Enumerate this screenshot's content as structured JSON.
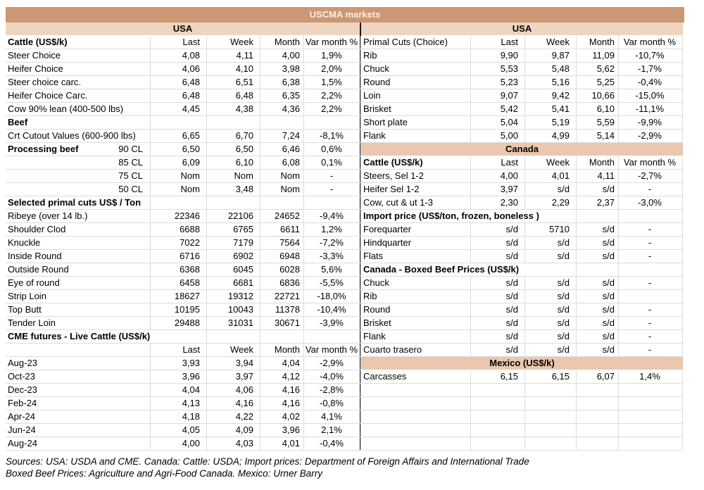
{
  "title": "USCMA markets",
  "colors": {
    "title_bar": "#cb9873",
    "usa_bar": "#efd5c0",
    "country_bar": "#eac7ad",
    "grid": "#dcdcdc",
    "divider": "#1a1a1a"
  },
  "column_headers": [
    "Last",
    "Week",
    "Month",
    "Var month %"
  ],
  "left": {
    "rows": [
      {
        "t": "bar",
        "variant": "usa",
        "label": "USA"
      },
      {
        "t": "colhead",
        "label": "Cattle (US$/k)",
        "labelBold": true,
        "cells": [
          "Last",
          "Week",
          "Month",
          "Var month %"
        ]
      },
      {
        "t": "data",
        "label": "Steer Choice",
        "cells": [
          "4,08",
          "4,11",
          "4,00",
          "1,9%"
        ]
      },
      {
        "t": "data",
        "label": "Heifer Choice",
        "cells": [
          "4,06",
          "4,10",
          "3,98",
          "2,0%"
        ]
      },
      {
        "t": "data",
        "label": "Steer choice carc.",
        "cells": [
          "6,48",
          "6,51",
          "6,38",
          "1,5%"
        ]
      },
      {
        "t": "data",
        "label": "Heifer Choice Carc.",
        "cells": [
          "6,48",
          "6,48",
          "6,35",
          "2,2%"
        ]
      },
      {
        "t": "data",
        "label": "Cow 90% lean (400-500 lbs)",
        "cells": [
          "4,45",
          "4,38",
          "4,36",
          "2,2%"
        ]
      },
      {
        "t": "section",
        "label": "Beef",
        "span": 1
      },
      {
        "t": "data",
        "label": "Crt Cutout Values (600-900 lbs)",
        "cells": [
          "6,65",
          "6,70",
          "7,24",
          "-8,1%"
        ]
      },
      {
        "t": "data",
        "label": "Processing beef",
        "sub": "90 CL",
        "labelBold": true,
        "cells": [
          "6,50",
          "6,50",
          "6,46",
          "0,6%"
        ]
      },
      {
        "t": "data",
        "label": "85 CL",
        "labelAlign": "right",
        "cells": [
          "6,09",
          "6,10",
          "6,08",
          "0,1%"
        ]
      },
      {
        "t": "data",
        "label": "75 CL",
        "labelAlign": "right",
        "cells": [
          "Nom",
          "Nom",
          "Nom",
          "-"
        ]
      },
      {
        "t": "data",
        "label": "50 CL",
        "labelAlign": "right",
        "cells": [
          "Nom",
          "3,48",
          "Nom",
          "-"
        ]
      },
      {
        "t": "section",
        "label": "Selected primal cuts US$ / Ton",
        "span": 1
      },
      {
        "t": "data",
        "label": "Ribeye (over 14 lb.)",
        "cells": [
          "22346",
          "22106",
          "24652",
          "-9,4%"
        ]
      },
      {
        "t": "data",
        "label": "Shoulder Clod",
        "cells": [
          "6688",
          "6765",
          "6611",
          "1,2%"
        ]
      },
      {
        "t": "data",
        "label": "Knuckle",
        "cells": [
          "7022",
          "7179",
          "7564",
          "-7,2%"
        ]
      },
      {
        "t": "data",
        "label": "Inside Round",
        "cells": [
          "6716",
          "6902",
          "6948",
          "-3,3%"
        ]
      },
      {
        "t": "data",
        "label": "Outside Round",
        "cells": [
          "6368",
          "6045",
          "6028",
          "5,6%"
        ]
      },
      {
        "t": "data",
        "label": "Eye of round",
        "cells": [
          "6458",
          "6681",
          "6836",
          "-5,5%"
        ]
      },
      {
        "t": "data",
        "label": "Strip Loin",
        "cells": [
          "18627",
          "19312",
          "22721",
          "-18,0%"
        ]
      },
      {
        "t": "data",
        "label": "Top Butt",
        "cells": [
          "10195",
          "10043",
          "11378",
          "-10,4%"
        ]
      },
      {
        "t": "data",
        "label": "Tender Loin",
        "cells": [
          "29488",
          "31031",
          "30671",
          "-3,9%"
        ]
      },
      {
        "t": "section",
        "label": "CME futures - Live Cattle (US$/k)",
        "span": 2
      },
      {
        "t": "colhead",
        "label": "",
        "cells": [
          "Last",
          "Week",
          "Month",
          "Var month %"
        ]
      },
      {
        "t": "data",
        "label": "Aug-23",
        "cells": [
          "3,93",
          "3,94",
          "4,04",
          "-2,9%"
        ]
      },
      {
        "t": "data",
        "label": "Oct-23",
        "cells": [
          "3,96",
          "3,97",
          "4,12",
          "-4,0%"
        ]
      },
      {
        "t": "data",
        "label": "Dec-23",
        "cells": [
          "4,04",
          "4,06",
          "4,16",
          "-2,8%"
        ]
      },
      {
        "t": "data",
        "label": "Feb-24",
        "cells": [
          "4,13",
          "4,16",
          "4,16",
          "-0,8%"
        ]
      },
      {
        "t": "data",
        "label": "Apr-24",
        "cells": [
          "4,18",
          "4,22",
          "4,02",
          "4,1%"
        ]
      },
      {
        "t": "data",
        "label": "Jun-24",
        "cells": [
          "4,05",
          "4,09",
          "3,96",
          "2,1%"
        ]
      },
      {
        "t": "data",
        "label": "Aug-24",
        "cells": [
          "4,00",
          "4,03",
          "4,01",
          "-0,4%"
        ]
      }
    ]
  },
  "right": {
    "rows": [
      {
        "t": "bar",
        "variant": "usa",
        "label": "USA"
      },
      {
        "t": "colhead",
        "label": "Primal Cuts (Choice)",
        "labelBold": false,
        "cells": [
          "Last",
          "Week",
          "Month",
          "Var month %"
        ]
      },
      {
        "t": "data",
        "label": "Rib",
        "cells": [
          "9,90",
          "9,87",
          "11,09",
          "-10,7%"
        ]
      },
      {
        "t": "data",
        "label": "Chuck",
        "cells": [
          "5,53",
          "5,48",
          "5,62",
          "-1,7%"
        ]
      },
      {
        "t": "data",
        "label": "Round",
        "cells": [
          "5,23",
          "5,16",
          "5,25",
          "-0,4%"
        ]
      },
      {
        "t": "data",
        "label": "Loin",
        "cells": [
          "9,07",
          "9,42",
          "10,66",
          "-15,0%"
        ]
      },
      {
        "t": "data",
        "label": "Brisket",
        "cells": [
          "5,42",
          "5,41",
          "6,10",
          "-11,1%"
        ]
      },
      {
        "t": "data",
        "label": "Short plate",
        "cells": [
          "5,04",
          "5,19",
          "5,59",
          "-9,9%"
        ]
      },
      {
        "t": "data",
        "label": "Flank",
        "cells": [
          "5,00",
          "4,99",
          "5,14",
          "-2,9%"
        ]
      },
      {
        "t": "bar",
        "variant": "country",
        "label": "Canada"
      },
      {
        "t": "colhead",
        "label": "Cattle (US$/k)",
        "labelBold": true,
        "cells": [
          "Last",
          "Week",
          "Month",
          "Var month %"
        ]
      },
      {
        "t": "data",
        "label": "Steers, Sel 1-2",
        "cells": [
          "4,00",
          "4,01",
          "4,11",
          "-2,7%"
        ]
      },
      {
        "t": "data",
        "label": "Heifer Sel 1-2",
        "cells": [
          "3,97",
          "s/d",
          "s/d",
          "-"
        ]
      },
      {
        "t": "data",
        "label": "Cow, cut & ut 1-3",
        "cells": [
          "2,30",
          "2,29",
          "2,37",
          "-3,0%"
        ]
      },
      {
        "t": "section",
        "label": "Import price (US$/ton, frozen, boneless )",
        "span": 3
      },
      {
        "t": "data",
        "label": "Forequarter",
        "cells": [
          "s/d",
          "5710",
          "s/d",
          "-"
        ]
      },
      {
        "t": "data",
        "label": "Hindquarter",
        "cells": [
          "s/d",
          "s/d",
          "s/d",
          "-"
        ]
      },
      {
        "t": "data",
        "label": "Flats",
        "cells": [
          "s/d",
          "s/d",
          "s/d",
          "-"
        ]
      },
      {
        "t": "section",
        "label": "Canada - Boxed Beef Prices (US$/k)",
        "span": 3
      },
      {
        "t": "data",
        "label": "Chuck",
        "cells": [
          "s/d",
          "s/d",
          "s/d",
          "-"
        ]
      },
      {
        "t": "data",
        "label": "Rib",
        "cells": [
          "s/d",
          "s/d",
          "s/d",
          ""
        ]
      },
      {
        "t": "data",
        "label": "Round",
        "cells": [
          "s/d",
          "s/d",
          "s/d",
          "-"
        ]
      },
      {
        "t": "data",
        "label": "Brisket",
        "cells": [
          "s/d",
          "s/d",
          "s/d",
          "-"
        ]
      },
      {
        "t": "data",
        "label": "Flank",
        "cells": [
          "s/d",
          "s/d",
          "s/d",
          "-"
        ]
      },
      {
        "t": "data",
        "label": "Cuarto trasero",
        "cells": [
          "s/d",
          "s/d",
          "s/d",
          "-"
        ]
      },
      {
        "t": "bar",
        "variant": "country",
        "label": "Mexico (US$/k)"
      },
      {
        "t": "data",
        "label": "Carcasses",
        "cells": [
          "6,15",
          "6,15",
          "6,07",
          "1,4%"
        ]
      },
      {
        "t": "empty"
      },
      {
        "t": "empty"
      },
      {
        "t": "empty"
      },
      {
        "t": "empty"
      },
      {
        "t": "empty"
      }
    ]
  },
  "sources": {
    "line1": "Sources: USA: USDA and CME. Canada: Cattle: USDA; Import prices: Department of Foreign Affairs and International Trade",
    "line2": "Boxed Beef Prices: Agriculture and Agri-Food Canada. Mexico: Urner Barry"
  }
}
